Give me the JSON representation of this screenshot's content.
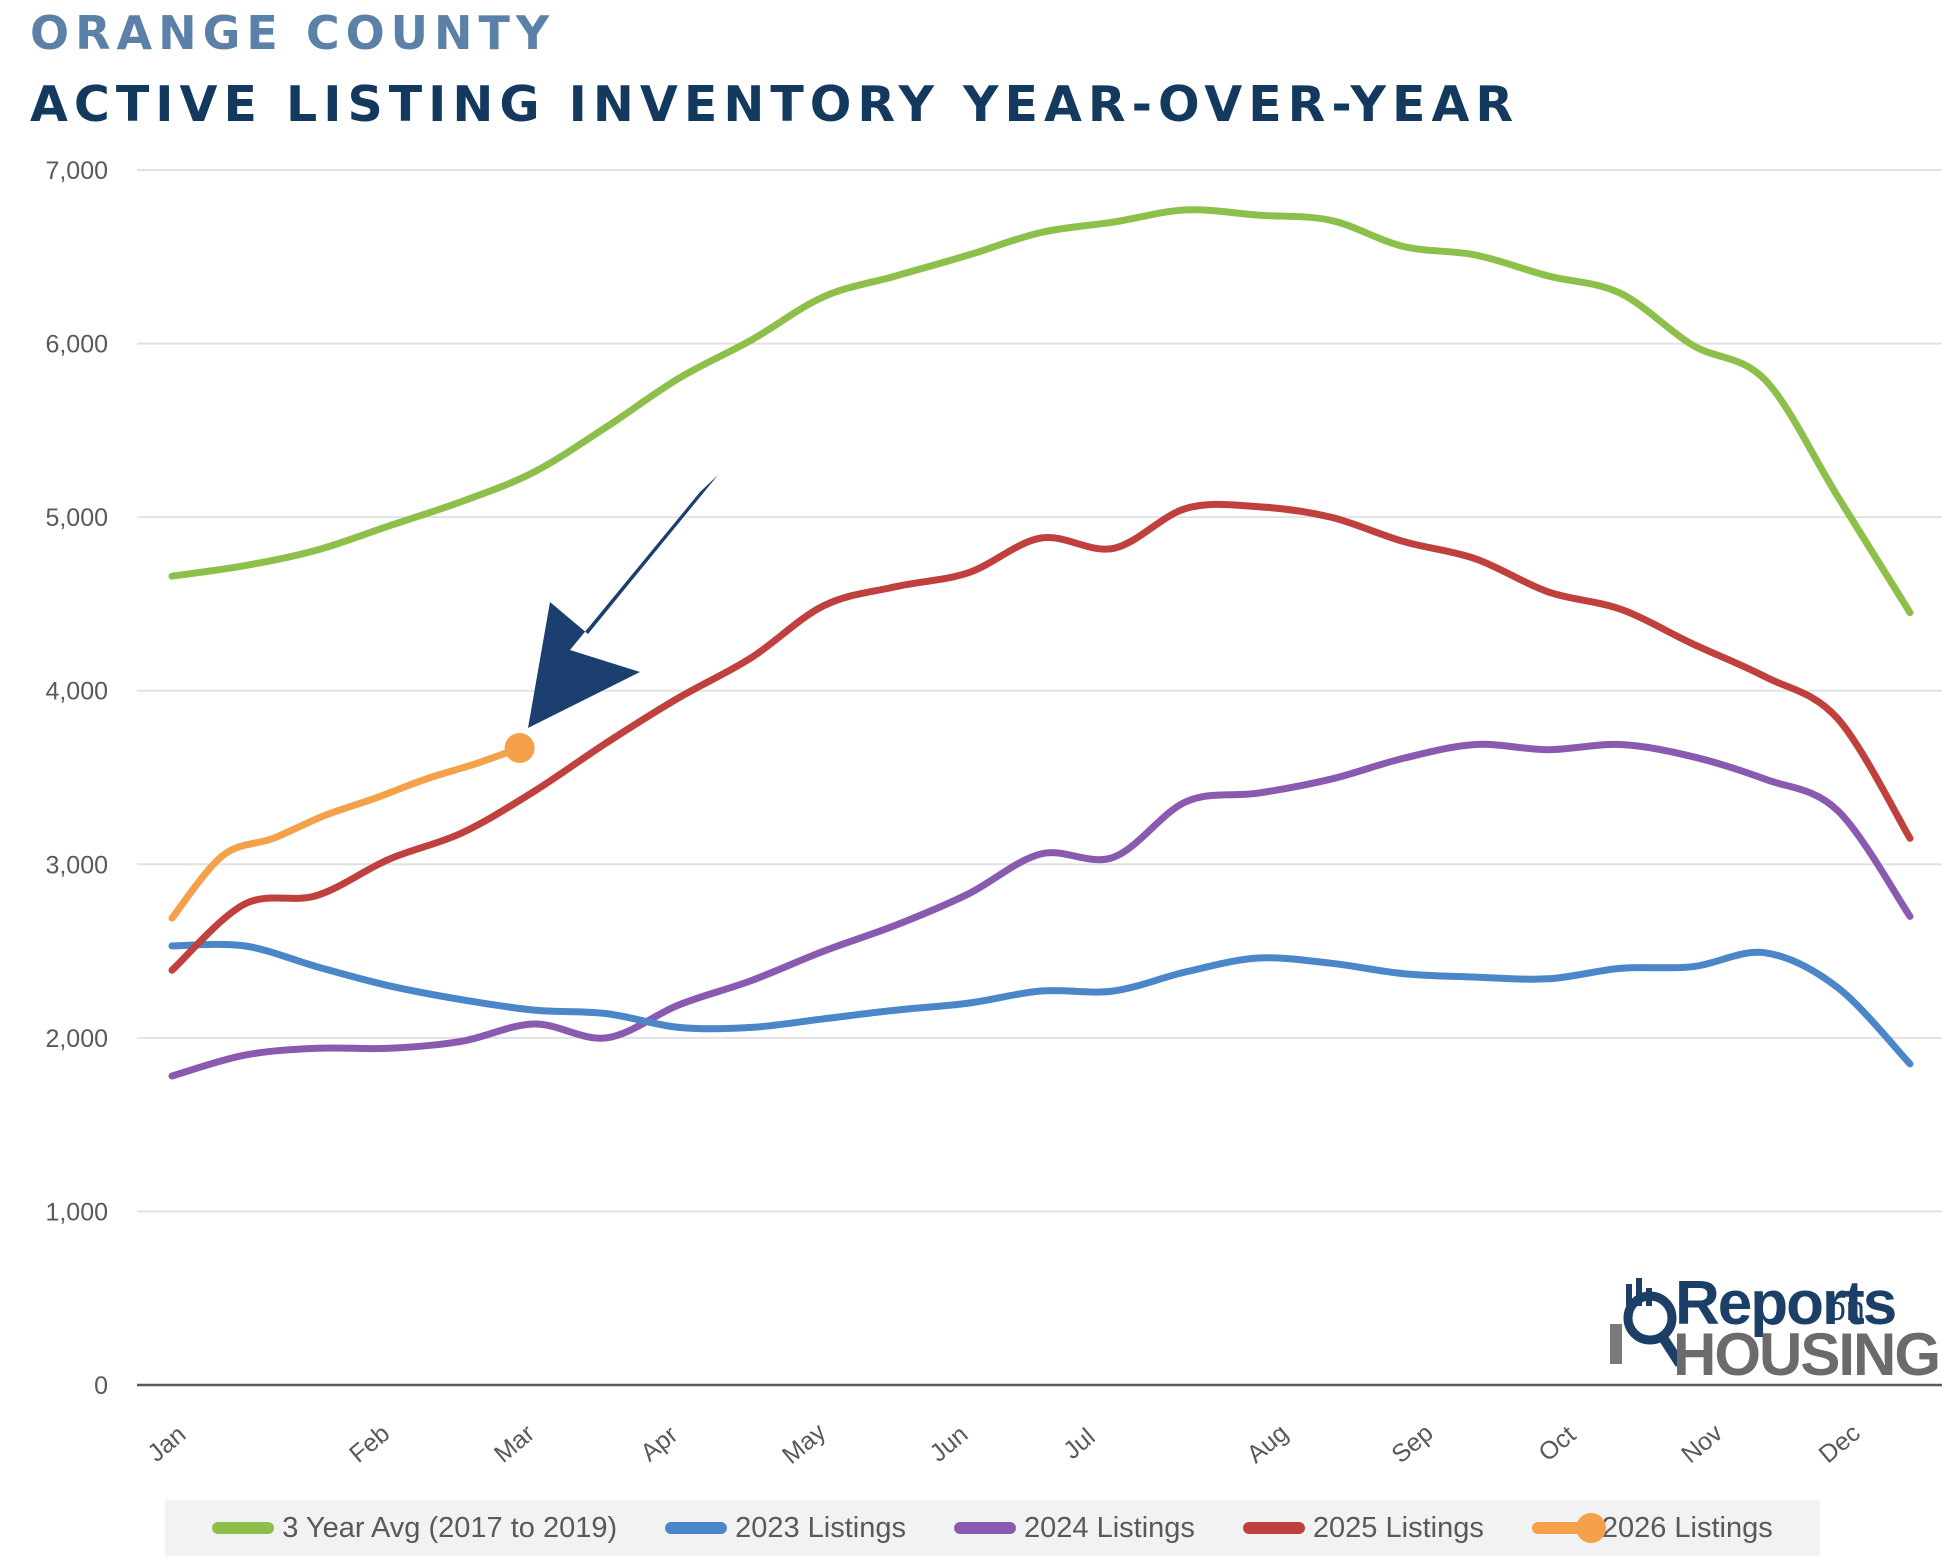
{
  "header": {
    "subtitle": "ORANGE COUNTY",
    "title": "ACTIVE LISTING INVENTORY YEAR-OVER-YEAR"
  },
  "logo": {
    "reports": "Reports",
    "on": "on",
    "housing": "HOUSING"
  },
  "colors": {
    "avg": "#8dc04a",
    "y2023": "#4a86c8",
    "y2024": "#8a5ab0",
    "y2025": "#c0403d",
    "y2026": "#f4a14a",
    "arrow": "#1b3f6e"
  },
  "chart_data": {
    "type": "line",
    "title": "ACTIVE LISTING INVENTORY YEAR-OVER-YEAR",
    "xlabel": "",
    "ylabel": "",
    "ylim": [
      0,
      7000
    ],
    "xlim": [
      0,
      12
    ],
    "yticks": [
      0,
      1000,
      2000,
      3000,
      4000,
      5000,
      6000,
      7000
    ],
    "ytick_labels": [
      "0",
      "1,000",
      "2,000",
      "3,000",
      "4,000",
      "5,000",
      "6,000",
      "7,000"
    ],
    "xticks": [
      {
        "label": "Jan",
        "x": 0
      },
      {
        "label": "Feb",
        "x": 1.4
      },
      {
        "label": "Mar",
        "x": 2.4
      },
      {
        "label": "Apr",
        "x": 3.4
      },
      {
        "label": "May",
        "x": 4.4
      },
      {
        "label": "Jun",
        "x": 5.4
      },
      {
        "label": "Jul",
        "x": 6.3
      },
      {
        "label": "Aug",
        "x": 7.6
      },
      {
        "label": "Sep",
        "x": 8.6
      },
      {
        "label": "Oct",
        "x": 9.6
      },
      {
        "label": "Nov",
        "x": 10.6
      },
      {
        "label": "Dec",
        "x": 11.55
      }
    ],
    "legend_position": "bottom",
    "series": [
      {
        "name": "3 Year Avg (2017 to 2019)",
        "key": "avg",
        "x": [
          0,
          0.5,
          1,
          1.5,
          2,
          2.5,
          3,
          3.5,
          4,
          4.5,
          5,
          5.5,
          6,
          6.5,
          7,
          7.5,
          8,
          8.5,
          9,
          9.5,
          10,
          10.5,
          11,
          11.5,
          12
        ],
        "values": [
          4660,
          4720,
          4810,
          4950,
          5090,
          5260,
          5520,
          5800,
          6020,
          6270,
          6390,
          6510,
          6640,
          6700,
          6770,
          6740,
          6710,
          6560,
          6510,
          6390,
          6290,
          5990,
          5790,
          5120,
          4450
        ]
      },
      {
        "name": "2023 Listings",
        "key": "y2023",
        "x": [
          0,
          0.5,
          1,
          1.5,
          2,
          2.5,
          3,
          3.5,
          4,
          4.5,
          5,
          5.5,
          6,
          6.5,
          7,
          7.5,
          8,
          8.5,
          9,
          9.5,
          10,
          10.5,
          11,
          11.5,
          12
        ],
        "values": [
          2530,
          2530,
          2410,
          2300,
          2220,
          2160,
          2140,
          2060,
          2060,
          2110,
          2160,
          2200,
          2270,
          2270,
          2380,
          2460,
          2430,
          2370,
          2350,
          2340,
          2400,
          2410,
          2490,
          2290,
          1850
        ]
      },
      {
        "name": "2024 Listings",
        "key": "y2024",
        "x": [
          0,
          0.5,
          1,
          1.5,
          2,
          2.5,
          3,
          3.5,
          4,
          4.5,
          5,
          5.5,
          6,
          6.5,
          7,
          7.5,
          8,
          8.5,
          9,
          9.5,
          10,
          10.5,
          11,
          11.5,
          12
        ],
        "values": [
          1780,
          1900,
          1940,
          1940,
          1980,
          2080,
          2000,
          2190,
          2330,
          2500,
          2650,
          2830,
          3060,
          3040,
          3360,
          3410,
          3490,
          3610,
          3690,
          3660,
          3690,
          3620,
          3490,
          3310,
          2700
        ]
      },
      {
        "name": "2025 Listings",
        "key": "y2025",
        "x": [
          0,
          0.5,
          1,
          1.5,
          2,
          2.5,
          3,
          3.5,
          4,
          4.5,
          5,
          5.5,
          6,
          6.5,
          7,
          7.5,
          8,
          8.5,
          9,
          9.5,
          10,
          10.5,
          11,
          11.5,
          12
        ],
        "values": [
          2390,
          2770,
          2820,
          3030,
          3180,
          3420,
          3700,
          3960,
          4190,
          4490,
          4600,
          4680,
          4880,
          4820,
          5050,
          5060,
          5000,
          4860,
          4760,
          4570,
          4470,
          4270,
          4080,
          3840,
          3150
        ]
      },
      {
        "name": "2026 Listings",
        "key": "y2026",
        "x": [
          0,
          0.35,
          0.7,
          1.05,
          1.4,
          1.75,
          2.1,
          2.4
        ],
        "values": [
          2690,
          3050,
          3150,
          3280,
          3380,
          3490,
          3580,
          3670
        ]
      }
    ],
    "annotations": [
      {
        "type": "arrow",
        "target": "2026 Listings latest value",
        "x": 2.4,
        "y": 3670
      }
    ]
  }
}
